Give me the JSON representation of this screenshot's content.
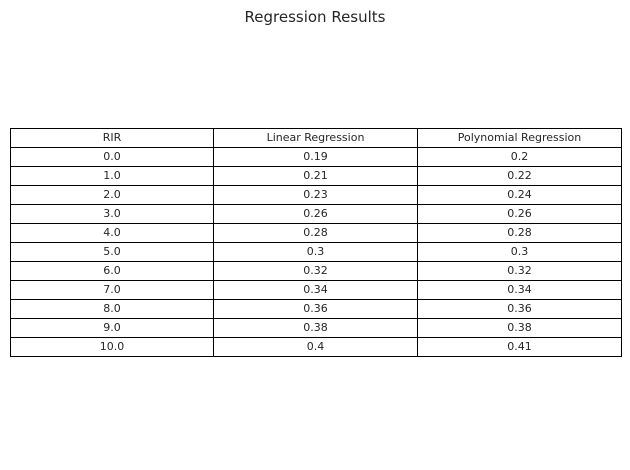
{
  "chart_data": {
    "type": "table",
    "title": "Regression Results",
    "columns": [
      "RIR",
      "Linear Regression",
      "Polynomial Regression"
    ],
    "rows": [
      [
        "0.0",
        "0.19",
        "0.2"
      ],
      [
        "1.0",
        "0.21",
        "0.22"
      ],
      [
        "2.0",
        "0.23",
        "0.24"
      ],
      [
        "3.0",
        "0.26",
        "0.26"
      ],
      [
        "4.0",
        "0.28",
        "0.28"
      ],
      [
        "5.0",
        "0.3",
        "0.3"
      ],
      [
        "6.0",
        "0.32",
        "0.32"
      ],
      [
        "7.0",
        "0.34",
        "0.34"
      ],
      [
        "8.0",
        "0.36",
        "0.36"
      ],
      [
        "9.0",
        "0.38",
        "0.38"
      ],
      [
        "10.0",
        "0.4",
        "0.41"
      ]
    ]
  }
}
